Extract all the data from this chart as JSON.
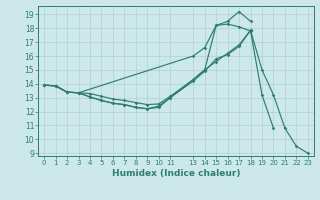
{
  "xlabel": "Humidex (Indice chaleur)",
  "bg_color": "#cce8e8",
  "grid_color": "#b0d0d0",
  "line_color": "#2e7d70",
  "xlim": [
    -0.5,
    23.5
  ],
  "ylim": [
    8.8,
    19.6
  ],
  "yticks": [
    9,
    10,
    11,
    12,
    13,
    14,
    15,
    16,
    17,
    18,
    19
  ],
  "xtick_positions": [
    0,
    1,
    2,
    3,
    4,
    5,
    6,
    7,
    8,
    9,
    10,
    11,
    13,
    14,
    15,
    16,
    17,
    18,
    19,
    20,
    21,
    22,
    23
  ],
  "xtick_labels": [
    "0",
    "1",
    "2",
    "3",
    "4",
    "5",
    "6",
    "7",
    "8",
    "9",
    "10",
    "11",
    "13",
    "14",
    "15",
    "16",
    "17",
    "18",
    "19",
    "20",
    "21",
    "22",
    "23"
  ],
  "lines": [
    {
      "x": [
        0,
        1,
        2,
        3,
        4,
        5,
        6,
        7,
        8,
        9,
        10,
        11,
        13,
        14,
        15,
        16,
        17,
        18,
        19,
        20
      ],
      "y": [
        13.9,
        13.85,
        13.4,
        13.35,
        13.05,
        12.8,
        12.6,
        12.5,
        12.3,
        12.2,
        12.4,
        13.0,
        14.3,
        15.0,
        18.2,
        18.3,
        18.1,
        17.8,
        13.2,
        10.8
      ]
    },
    {
      "x": [
        0,
        1,
        2,
        3,
        13,
        14,
        15,
        16,
        17,
        18
      ],
      "y": [
        13.9,
        13.85,
        13.4,
        13.35,
        16.0,
        16.6,
        18.2,
        18.5,
        19.2,
        18.5
      ]
    },
    {
      "x": [
        0,
        1,
        2,
        3,
        4,
        5,
        6,
        7,
        8,
        9,
        10,
        11,
        13,
        14,
        15,
        16,
        17,
        18
      ],
      "y": [
        13.9,
        13.85,
        13.4,
        13.35,
        13.3,
        13.1,
        12.9,
        12.8,
        12.65,
        12.5,
        12.55,
        13.1,
        14.3,
        15.0,
        15.6,
        16.2,
        16.8,
        17.85
      ]
    },
    {
      "x": [
        0,
        1,
        2,
        3,
        4,
        5,
        6,
        7,
        8,
        9,
        10,
        11,
        13,
        14,
        15,
        16,
        17,
        18,
        19,
        20,
        21,
        22,
        23
      ],
      "y": [
        13.9,
        13.85,
        13.4,
        13.35,
        13.05,
        12.8,
        12.6,
        12.5,
        12.3,
        12.2,
        12.3,
        13.0,
        14.2,
        14.9,
        15.8,
        16.1,
        16.7,
        17.85,
        15.0,
        13.2,
        10.8,
        9.5,
        9.0
      ]
    }
  ]
}
